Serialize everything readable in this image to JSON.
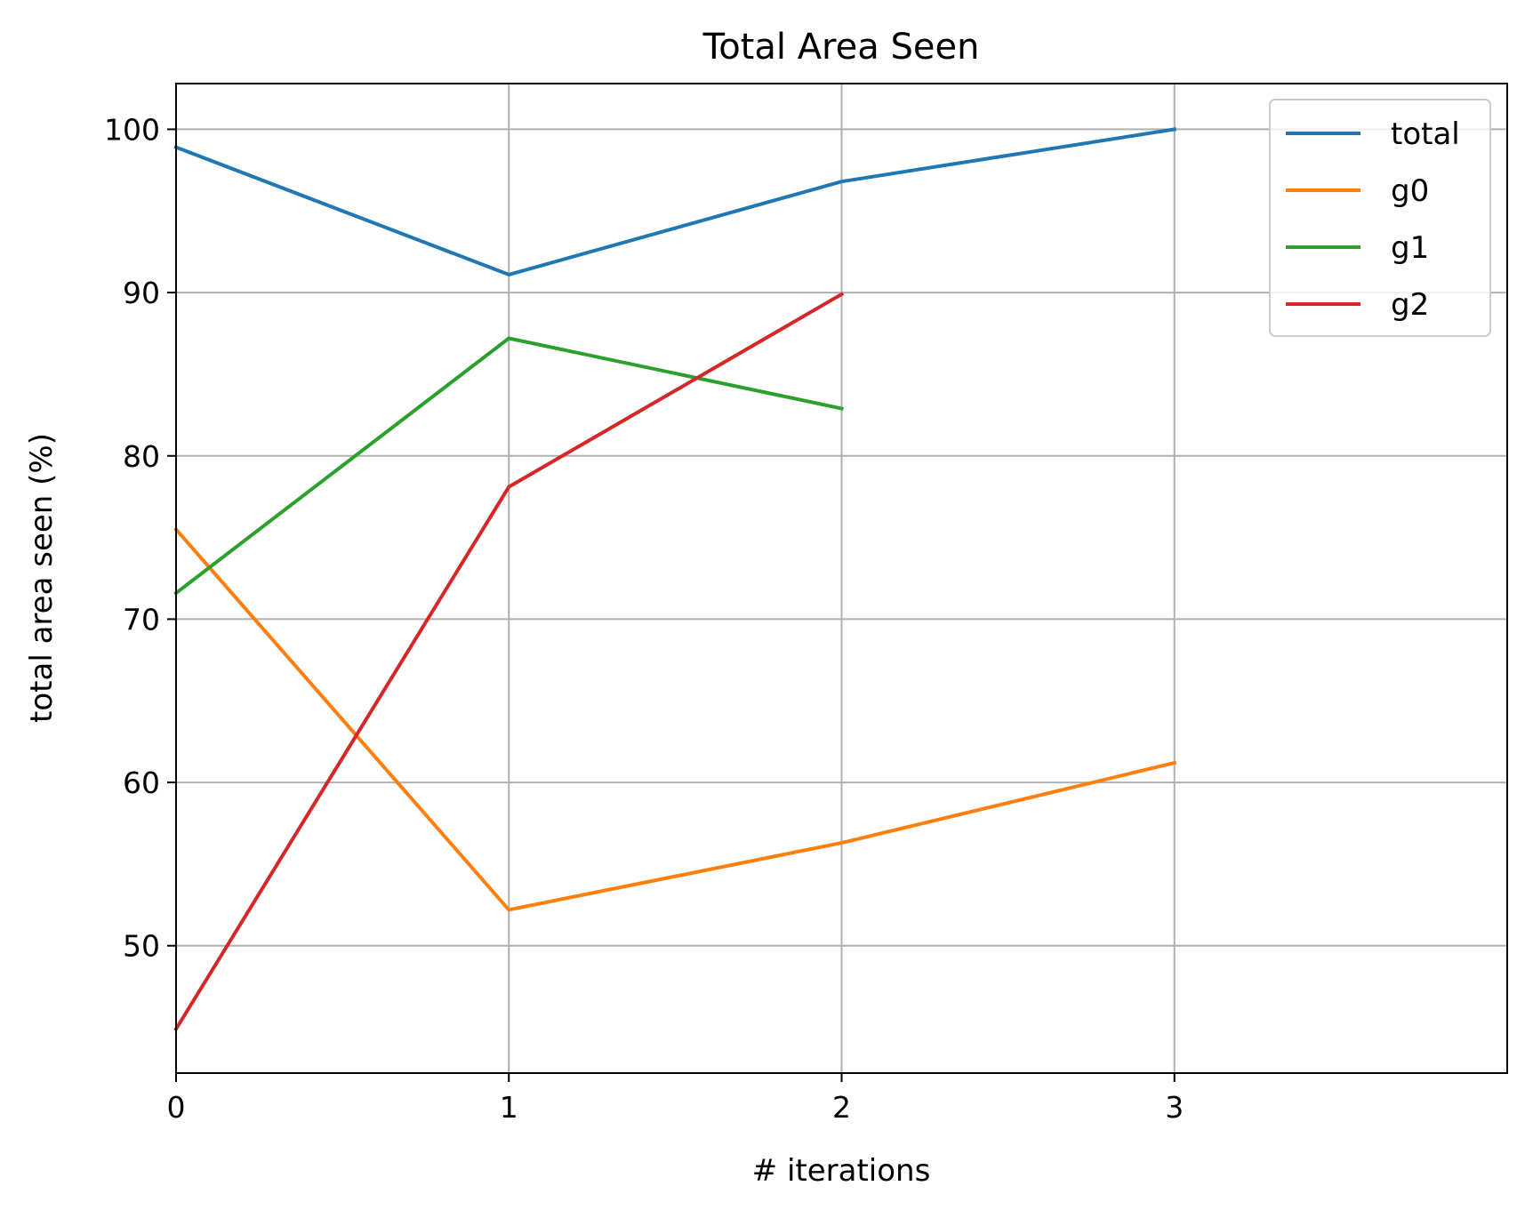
{
  "chart_data": {
    "type": "line",
    "title": "Total Area Seen",
    "xlabel": "# iterations",
    "ylabel": "total area seen (%)",
    "xlim": [
      0,
      4
    ],
    "ylim": [
      42.2,
      102.8
    ],
    "xticks": [
      0,
      1,
      2,
      3
    ],
    "yticks": [
      50,
      60,
      70,
      80,
      90,
      100
    ],
    "grid": true,
    "legend_position": "upper right",
    "series": [
      {
        "name": "total",
        "color": "#1f77b4",
        "x": [
          0,
          1,
          2,
          3
        ],
        "y": [
          98.9,
          91.1,
          96.8,
          100.0
        ]
      },
      {
        "name": "g0",
        "color": "#ff7f0e",
        "x": [
          0,
          1,
          2,
          3
        ],
        "y": [
          75.5,
          52.2,
          56.3,
          61.2
        ]
      },
      {
        "name": "g1",
        "color": "#2ca02c",
        "x": [
          0,
          1,
          2
        ],
        "y": [
          71.6,
          87.2,
          82.9
        ]
      },
      {
        "name": "g2",
        "color": "#d62728",
        "x": [
          0,
          1,
          2
        ],
        "y": [
          44.9,
          78.1,
          89.9
        ]
      }
    ]
  }
}
